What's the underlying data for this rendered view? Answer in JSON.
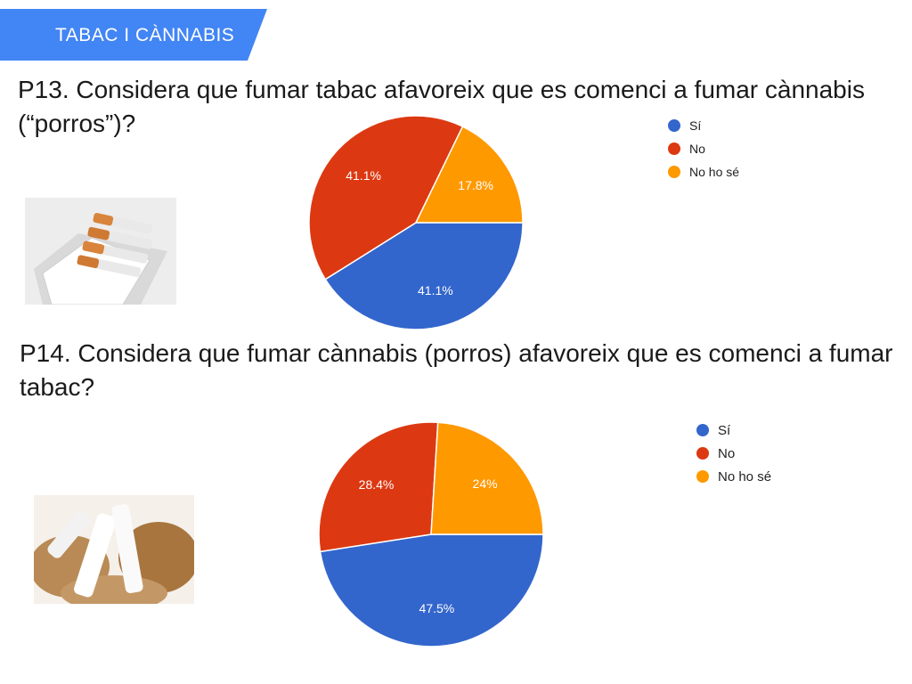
{
  "banner": {
    "label": "TABAC I CÀNNABIS",
    "color": "#4285f4"
  },
  "questions": [
    {
      "text": "P13. Considera que fumar tabac afavoreix que es comenci a fumar cànnabis (“porros”)?"
    },
    {
      "text": "P14. Considera que fumar cànnabis (porros) afavoreix que es comenci a fumar tabac?"
    }
  ],
  "images": [
    {
      "icon": "cigarette-pack-photo"
    },
    {
      "icon": "rolling-tobacco-photo"
    }
  ],
  "chart_data": [
    {
      "type": "pie",
      "categories": [
        "Sí",
        "No",
        "No ho sé"
      ],
      "values": [
        41.1,
        41.1,
        17.8
      ],
      "labels": [
        "41.1%",
        "41.1%",
        "17.8%"
      ],
      "colors": [
        "#3366cc",
        "#dc3912",
        "#ff9900"
      ],
      "legend_position": "right"
    },
    {
      "type": "pie",
      "categories": [
        "Sí",
        "No",
        "No ho sé"
      ],
      "values": [
        47.5,
        28.4,
        24
      ],
      "labels": [
        "47.5%",
        "28.4%",
        "24%"
      ],
      "colors": [
        "#3366cc",
        "#dc3912",
        "#ff9900"
      ],
      "legend_position": "right"
    }
  ]
}
